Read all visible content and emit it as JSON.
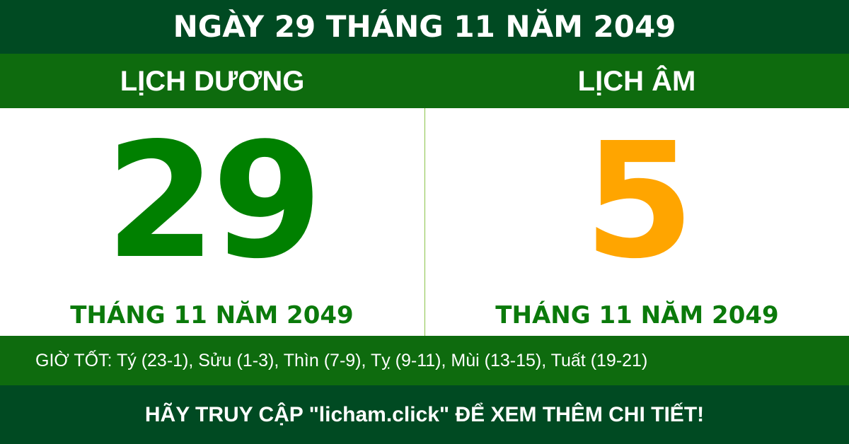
{
  "title": "NGÀY 29 THÁNG 11 NĂM 2049",
  "headers": {
    "solar": "LỊCH DƯƠNG",
    "lunar": "LỊCH ÂM"
  },
  "solar": {
    "day": "29",
    "month_year": "THÁNG 11 NĂM 2049"
  },
  "lunar": {
    "day": "5",
    "month_year": "THÁNG 11 NĂM 2049"
  },
  "good_hours": "GIỜ TỐT: Tý (23-1), Sửu (1-3), Thìn (7-9), Tỵ (9-11), Mùi (13-15), Tuất (19-21)",
  "footer": "HÃY TRUY CẬP \"licham.click\" ĐỂ XEM THÊM CHI TIẾT!",
  "colors": {
    "dark_green": "#004a22",
    "green": "#0e6b0e",
    "solar_day": "#008000",
    "lunar_day": "#ffa500"
  }
}
